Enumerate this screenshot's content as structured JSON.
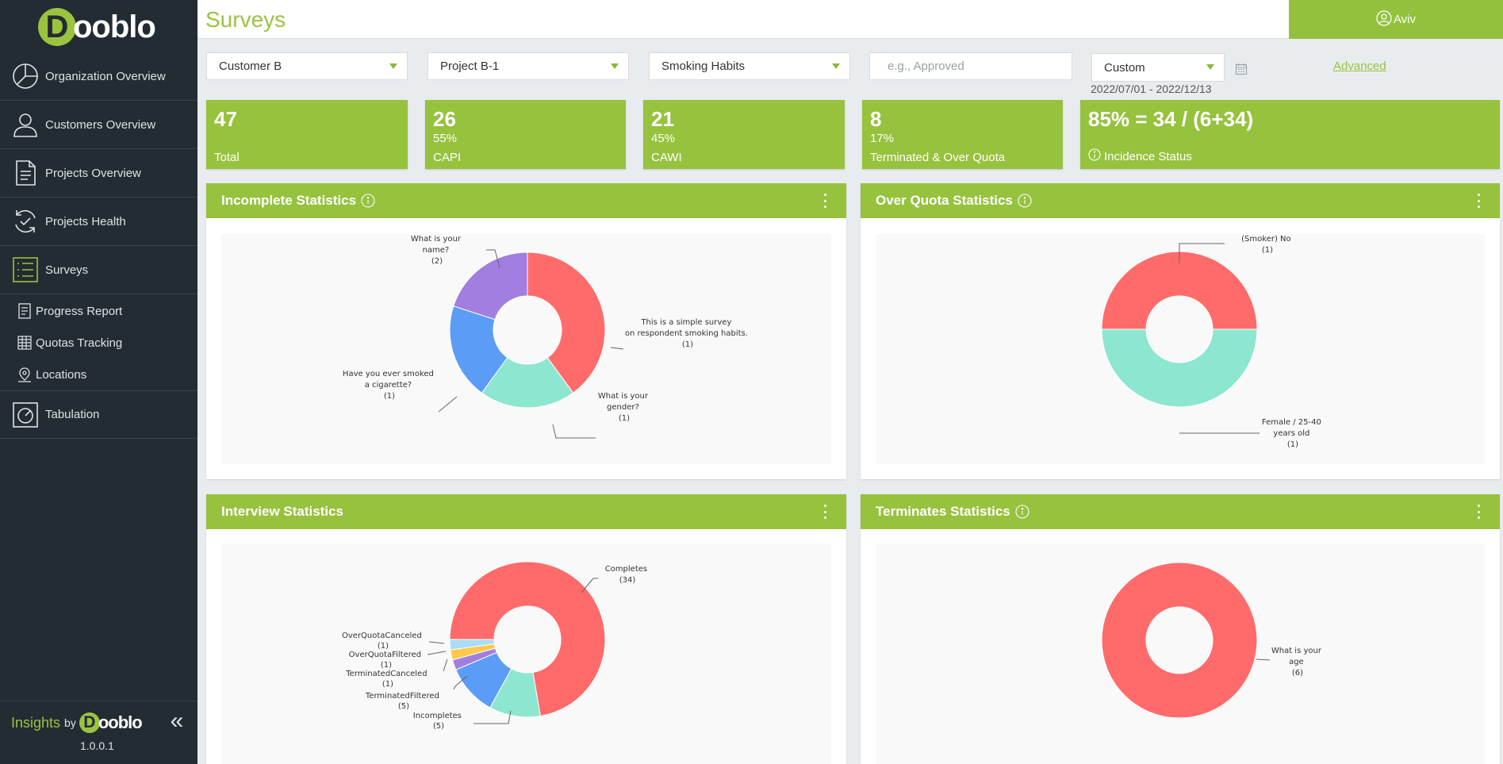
{
  "brand": {
    "logo_letter": "D",
    "logo_text": "ooblo",
    "insights": "Insights",
    "by": "by",
    "version": "1.0.0.1"
  },
  "nav": [
    {
      "label": "Organization Overview",
      "icon": "pie-chart-icon"
    },
    {
      "label": "Customers Overview",
      "icon": "user-icon"
    },
    {
      "label": "Projects Overview",
      "icon": "document-icon"
    },
    {
      "label": "Projects Health",
      "icon": "refresh-check-icon"
    },
    {
      "label": "Surveys",
      "icon": "list-icon",
      "active": true
    }
  ],
  "subnav": [
    {
      "label": "Progress Report",
      "icon": "report-icon"
    },
    {
      "label": "Quotas Tracking",
      "icon": "grid-icon"
    },
    {
      "label": "Locations",
      "icon": "map-pin-icon"
    }
  ],
  "nav_bottom": {
    "label": "Tabulation",
    "icon": "gauge-icon"
  },
  "header": {
    "title": "Surveys",
    "user": "Aviv"
  },
  "filters": {
    "customer": "Customer B",
    "project": "Project B-1",
    "survey": "Smoking Habits",
    "status_placeholder": "e.g., Approved",
    "period": "Custom",
    "date_range": "2022/07/01 - 2022/12/13",
    "advanced": "Advanced"
  },
  "kpis": [
    {
      "value": "47",
      "pct": "",
      "label": "Total"
    },
    {
      "value": "26",
      "pct": "55%",
      "label": "CAPI"
    },
    {
      "value": "21",
      "pct": "45%",
      "label": "CAWI"
    },
    {
      "value": "8",
      "pct": "17%",
      "label": "Terminated & Over Quota"
    },
    {
      "value": "85% = 34 / (6+34)",
      "pct": "",
      "label": "Incidence Status"
    }
  ],
  "colors": {
    "green": "#96c23e",
    "red": "#ff6b6b",
    "teal": "#8de6d0",
    "blue": "#5b9cf7",
    "purple": "#a17ee0",
    "yellow": "#ffc94d",
    "light_blue": "#a8dcf7",
    "sidebar": "#232b33"
  },
  "panels": {
    "incomplete": {
      "title": "Incomplete Statistics",
      "slices": [
        {
          "label": "What is your name?",
          "count": 2,
          "color": "#ff6b6b"
        },
        {
          "label": "This is a simple survey on respondent smoking habits.",
          "count": 1,
          "color": "#8de6d0"
        },
        {
          "label": "What is your gender?",
          "count": 1,
          "color": "#5b9cf7"
        },
        {
          "label": "Have you ever smoked a cigarette?",
          "count": 1,
          "color": "#a17ee0"
        }
      ],
      "labels": {
        "name": [
          "What is your",
          "name?",
          "(2)"
        ],
        "survey": [
          "This is a simple survey",
          "on respondent smoking habits.",
          "(1)"
        ],
        "gender": [
          "What is your",
          "gender?",
          "(1)"
        ],
        "smoked": [
          "Have you ever smoked",
          "a cigarette?",
          "(1)"
        ]
      }
    },
    "overquota": {
      "title": "Over Quota Statistics",
      "slices": [
        {
          "label": "(Smoker) No",
          "count": 1,
          "color": "#ff6b6b"
        },
        {
          "label": "Female / 25-40 years old",
          "count": 1,
          "color": "#8de6d0"
        }
      ],
      "labels": {
        "smoker": [
          "(Smoker) No",
          "(1)"
        ],
        "female": [
          "Female / 25-40",
          "years old",
          "(1)"
        ]
      }
    },
    "interview": {
      "title": "Interview Statistics",
      "slices": [
        {
          "label": "Completes",
          "count": 34,
          "color": "#ff6b6b"
        },
        {
          "label": "Incompletes",
          "count": 5,
          "color": "#8de6d0"
        },
        {
          "label": "TerminatedFiltered",
          "count": 5,
          "color": "#5b9cf7"
        },
        {
          "label": "TerminatedCanceled",
          "count": 1,
          "color": "#a17ee0"
        },
        {
          "label": "OverQuotaFiltered",
          "count": 1,
          "color": "#ffc94d"
        },
        {
          "label": "OverQuotaCanceled",
          "count": 1,
          "color": "#a8dcf7"
        }
      ],
      "labels": {
        "completes": [
          "Completes",
          "(34)"
        ],
        "incompletes": [
          "Incompletes",
          "(5)"
        ],
        "termfilt": [
          "TerminatedFiltered",
          "(5)"
        ],
        "termcanc": [
          "TerminatedCanceled",
          "(1)"
        ],
        "oqfilt": [
          "OverQuotaFiltered",
          "(1)"
        ],
        "oqcanc": [
          "OverQuotaCanceled",
          "(1)"
        ]
      }
    },
    "terminates": {
      "title": "Terminates Statistics",
      "slices": [
        {
          "label": "What is your age",
          "count": 6,
          "color": "#ff6b6b"
        }
      ],
      "labels": {
        "age": [
          "What is your",
          "age",
          "(6)"
        ]
      }
    }
  }
}
